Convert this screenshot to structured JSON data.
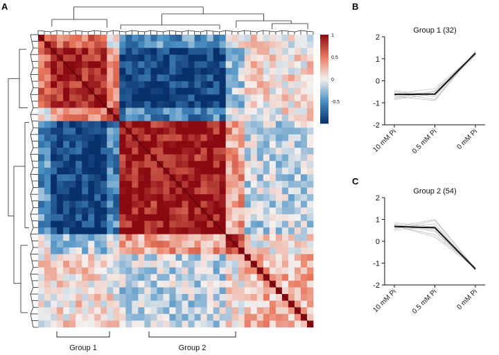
{
  "panels": {
    "a": {
      "label": "A"
    },
    "b": {
      "label": "B"
    },
    "c": {
      "label": "C"
    }
  },
  "chart_data": [
    {
      "type": "heatmap",
      "panel": "A",
      "description_kind": "correlation matrix with hierarchical clustering dendrograms",
      "colorbar": {
        "min": -1,
        "max": 1,
        "ticks": [
          {
            "value": 1,
            "label": "1"
          },
          {
            "value": 0.5,
            "label": "0.5"
          },
          {
            "value": 0,
            "label": "0"
          },
          {
            "value": -0.5,
            "label": "-0.5"
          }
        ],
        "colors": {
          "negative": "#08306b",
          "mid_neg": "#4a90c4",
          "zero": "#f4f0ee",
          "mid_pos": "#e8795f",
          "positive": "#8b0a12"
        }
      },
      "groups": [
        {
          "label": "Group 1"
        },
        {
          "label": "Group 2"
        }
      ]
    },
    {
      "type": "line",
      "panel": "B",
      "title": "Group 1 (32)",
      "categories": [
        "10 mM Pi",
        "0.5 mM Pi",
        "0 mM Pi"
      ],
      "ylim": [
        -2,
        2
      ],
      "yticks": [
        -2,
        -1,
        0,
        1,
        2
      ],
      "series": [
        {
          "name": "mean",
          "values": [
            -0.62,
            -0.6,
            1.25
          ]
        },
        {
          "name": "profile",
          "values": [
            -0.5,
            -0.72,
            1.3
          ]
        },
        {
          "name": "profile",
          "values": [
            -0.75,
            -0.45,
            1.2
          ]
        },
        {
          "name": "profile",
          "values": [
            -0.55,
            -0.85,
            1.35
          ]
        },
        {
          "name": "profile",
          "values": [
            -0.8,
            -0.5,
            1.28
          ]
        },
        {
          "name": "profile",
          "values": [
            -0.45,
            -0.65,
            1.15
          ]
        },
        {
          "name": "profile",
          "values": [
            -0.7,
            -0.9,
            1.32
          ]
        },
        {
          "name": "profile",
          "values": [
            -0.6,
            -0.35,
            1.22
          ]
        },
        {
          "name": "profile",
          "values": [
            -0.85,
            -0.6,
            1.27
          ]
        }
      ]
    },
    {
      "type": "line",
      "panel": "C",
      "title": "Group 2 (54)",
      "categories": [
        "10 mM Pi",
        "0.5 mM Pi",
        "0 mM Pi"
      ],
      "ylim": [
        -2,
        2
      ],
      "yticks": [
        -2,
        -1,
        0,
        1,
        2
      ],
      "series": [
        {
          "name": "mean",
          "values": [
            0.68,
            0.62,
            -1.27
          ]
        },
        {
          "name": "profile",
          "values": [
            0.8,
            0.5,
            -1.3
          ]
        },
        {
          "name": "profile",
          "values": [
            0.55,
            0.95,
            -1.25
          ]
        },
        {
          "name": "profile",
          "values": [
            0.7,
            0.3,
            -1.2
          ]
        },
        {
          "name": "profile",
          "values": [
            0.6,
            0.8,
            -1.32
          ]
        },
        {
          "name": "profile",
          "values": [
            0.75,
            0.45,
            -1.28
          ]
        },
        {
          "name": "profile",
          "values": [
            0.5,
            0.7,
            -1.22
          ]
        },
        {
          "name": "profile",
          "values": [
            0.85,
            0.65,
            -1.3
          ]
        },
        {
          "name": "profile",
          "values": [
            0.65,
            1.0,
            -1.26
          ]
        },
        {
          "name": "profile",
          "values": [
            0.72,
            0.2,
            -1.24
          ]
        }
      ]
    }
  ]
}
